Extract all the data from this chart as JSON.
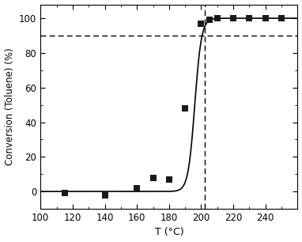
{
  "data_x": [
    115,
    140,
    160,
    170,
    180,
    190,
    200,
    205,
    210,
    220,
    230,
    240,
    250
  ],
  "data_y": [
    -1,
    -2,
    2,
    8,
    7,
    48,
    97,
    99,
    100,
    100,
    100,
    100,
    100
  ],
  "sigmoid_x_min": 100,
  "sigmoid_x_max": 260,
  "hline_y": 90,
  "vline_x": 202,
  "xlim": [
    100,
    260
  ],
  "ylim": [
    -10,
    108
  ],
  "xticks": [
    100,
    120,
    140,
    160,
    180,
    200,
    220,
    240
  ],
  "yticks": [
    0,
    20,
    40,
    60,
    80,
    100
  ],
  "xlabel": "T (°C)",
  "ylabel": "Conversion (Toluene) (%)",
  "line_color": "#000000",
  "marker_color": "#1a1a1a",
  "background_color": "#ffffff",
  "dashed_color": "#000000",
  "sigmoid_L": 100,
  "sigmoid_k": 0.48,
  "sigmoid_x0": 196
}
